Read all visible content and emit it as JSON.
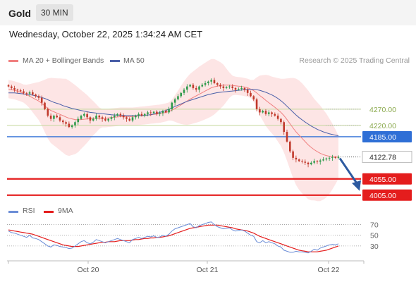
{
  "header": {
    "title": "Gold",
    "timeframe": "30 MIN"
  },
  "datetime": "Wednesday, October 22, 2025 1:34:24 AM CET",
  "legend": {
    "bollinger": "MA 20 + Bollinger Bands",
    "ma50": "MA 50",
    "rsi": "RSI",
    "ma9": "9MA",
    "credit": "Research © 2025 Trading Central"
  },
  "colors": {
    "ma20": "#f08080",
    "band_fill": "#fde2e2",
    "ma50": "#4a5fa8",
    "green_level": "#c3d69b",
    "blue_level": "#2f6fd6",
    "red_level": "#e41d1d",
    "last_price": "#222222",
    "bull": "#2d9a4a",
    "bear": "#c0392b",
    "arrow": "#2d5aa0",
    "rsi": "#6b8dd6",
    "rsi_ma": "#e41d1d"
  },
  "chart_data": [
    {
      "type": "candlestick",
      "title": "Gold",
      "timeframe": "30 MIN",
      "x_labels": [
        "Oct 20",
        "Oct 21",
        "Oct 22"
      ],
      "ylim": [
        3985,
        4400
      ],
      "levels": [
        {
          "value": 4270.0,
          "label": "4270.00",
          "kind": "resistance"
        },
        {
          "value": 4220.0,
          "label": "4220.00",
          "kind": "resistance"
        },
        {
          "value": 4185.0,
          "label": "4185.00",
          "kind": "pivot"
        },
        {
          "value": 4122.78,
          "label": "4122.78",
          "kind": "last"
        },
        {
          "value": 4055.0,
          "label": "4055.00",
          "kind": "support"
        },
        {
          "value": 4005.0,
          "label": "4005.00",
          "kind": "support"
        }
      ],
      "close": [
        4340,
        4335,
        4330,
        4328,
        4325,
        4320,
        4318,
        4322,
        4315,
        4310,
        4305,
        4290,
        4270,
        4250,
        4240,
        4250,
        4245,
        4235,
        4230,
        4225,
        4215,
        4220,
        4230,
        4240,
        4250,
        4255,
        4245,
        4235,
        4240,
        4250,
        4245,
        4240,
        4235,
        4240,
        4245,
        4250,
        4255,
        4250,
        4245,
        4240,
        4235,
        4245,
        4250,
        4255,
        4250,
        4255,
        4260,
        4258,
        4262,
        4255,
        4258,
        4265,
        4260,
        4270,
        4290,
        4300,
        4310,
        4320,
        4330,
        4340,
        4345,
        4335,
        4330,
        4340,
        4345,
        4350,
        4355,
        4360,
        4350,
        4345,
        4340,
        4335,
        4338,
        4340,
        4335,
        4330,
        4332,
        4335,
        4330,
        4320,
        4310,
        4300,
        4270,
        4260,
        4265,
        4255,
        4260,
        4255,
        4250,
        4240,
        4230,
        4200,
        4170,
        4140,
        4120,
        4115,
        4110,
        4108,
        4105,
        4100,
        4105,
        4110,
        4108,
        4112,
        4115,
        4118,
        4120,
        4122,
        4120,
        4122.78
      ],
      "ma20": [
        4332,
        4330,
        4328,
        4325,
        4322,
        4318,
        4314,
        4310,
        4305,
        4300,
        4295,
        4288,
        4280,
        4272,
        4266,
        4262,
        4258,
        4254,
        4250,
        4246,
        4242,
        4240,
        4238,
        4237,
        4238,
        4239,
        4240,
        4241,
        4242,
        4242,
        4242,
        4242,
        4242,
        4243,
        4244,
        4245,
        4246,
        4247,
        4247,
        4247,
        4247,
        4247,
        4248,
        4249,
        4250,
        4251,
        4252,
        4253,
        4254,
        4255,
        4256,
        4258,
        4260,
        4263,
        4267,
        4272,
        4277,
        4283,
        4289,
        4295,
        4301,
        4306,
        4311,
        4316,
        4321,
        4326,
        4331,
        4336,
        4339,
        4341,
        4343,
        4344,
        4344,
        4344,
        4343,
        4342,
        4341,
        4340,
        4338,
        4336,
        4332,
        4327,
        4320,
        4312,
        4305,
        4297,
        4290,
        4283,
        4276,
        4268,
        4260,
        4250,
        4238,
        4225,
        4212,
        4200,
        4190,
        4180,
        4170,
        4160,
        4152,
        4145,
        4139,
        4134,
        4130,
        4127,
        4125,
        4124,
        4123,
        4122
      ],
      "ma50": [
        4320,
        4320,
        4320,
        4319,
        4318,
        4317,
        4316,
        4315,
        4313,
        4311,
        4309,
        4306,
        4303,
        4299,
        4295,
        4291,
        4288,
        4285,
        4281,
        4278,
        4275,
        4272,
        4270,
        4268,
        4266,
        4264,
        4262,
        4260,
        4259,
        4258,
        4257,
        4256,
        4255,
        4254,
        4253,
        4252,
        4252,
        4251,
        4251,
        4250,
        4250,
        4250,
        4250,
        4250,
        4250,
        4251,
        4252,
        4253,
        4255,
        4257,
        4260,
        4263,
        4266,
        4270,
        4274,
        4278,
        4282,
        4286,
        4290,
        4294,
        4297,
        4300,
        4303,
        4306,
        4309,
        4312,
        4315,
        4317,
        4319,
        4321,
        4322,
        4323,
        4324,
        4325,
        4326,
        4327,
        4328,
        4329,
        4330,
        4331,
        4331,
        4331,
        4330,
        4328,
        4325,
        4322,
        4318,
        4314,
        4309,
        4303,
        4296,
        4288,
        4279,
        4270,
        4261,
        4252,
        4244,
        4237,
        4230,
        4224,
        4218,
        4213,
        4208,
        4204,
        4200,
        4197,
        4194,
        4192,
        4190,
        4188
      ],
      "rsi_panel": {
        "ticks": [
          70,
          50,
          30
        ],
        "rsi": [
          58,
          55,
          54,
          52,
          50,
          48,
          46,
          50,
          45,
          44,
          42,
          38,
          34,
          30,
          28,
          32,
          31,
          29,
          28,
          27,
          25,
          26,
          30,
          34,
          38,
          40,
          36,
          34,
          37,
          42,
          40,
          38,
          36,
          38,
          40,
          42,
          44,
          42,
          40,
          38,
          36,
          42,
          44,
          46,
          44,
          46,
          48,
          47,
          49,
          46,
          47,
          50,
          48,
          52,
          58,
          62,
          64,
          66,
          68,
          70,
          72,
          66,
          64,
          68,
          70,
          72,
          74,
          75,
          70,
          66,
          64,
          62,
          63,
          64,
          60,
          58,
          59,
          60,
          58,
          54,
          50,
          48,
          38,
          36,
          40,
          36,
          38,
          36,
          34,
          30,
          28,
          22,
          20,
          18,
          18,
          20,
          19,
          19,
          18,
          17,
          20,
          24,
          22,
          26,
          28,
          30,
          32,
          33,
          32,
          34
        ],
        "ma9": [
          60,
          59,
          58,
          57,
          56,
          55,
          54,
          53,
          52,
          50,
          48,
          46,
          44,
          42,
          40,
          38,
          36,
          34,
          32,
          31,
          30,
          29,
          29,
          29,
          30,
          31,
          32,
          33,
          34,
          35,
          36,
          37,
          37,
          38,
          38,
          38,
          39,
          40,
          40,
          40,
          40,
          41,
          42,
          42,
          43,
          44,
          44,
          45,
          45,
          46,
          46,
          47,
          48,
          49,
          51,
          53,
          55,
          57,
          59,
          61,
          63,
          64,
          65,
          66,
          67,
          68,
          69,
          69,
          69,
          69,
          68,
          67,
          66,
          65,
          64,
          62,
          61,
          60,
          59,
          58,
          56,
          54,
          51,
          48,
          46,
          44,
          42,
          40,
          38,
          36,
          34,
          32,
          30,
          28,
          26,
          24,
          22,
          21,
          20,
          19,
          19,
          19,
          19,
          20,
          21,
          22,
          24,
          26,
          28,
          30
        ]
      }
    }
  ]
}
